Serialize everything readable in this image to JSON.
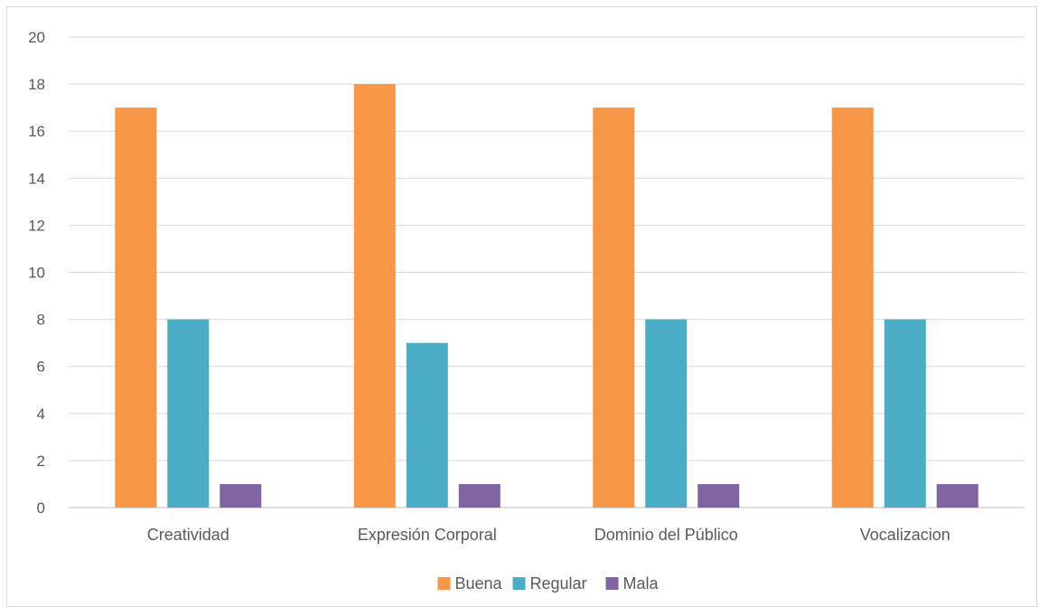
{
  "chart_data": {
    "type": "bar",
    "categories": [
      "Creatividad",
      "Expresión Corporal",
      "Dominio del Público",
      "Vocalizacion"
    ],
    "series": [
      {
        "name": "Buena",
        "values": [
          17,
          18,
          17,
          17
        ],
        "color": "#F79646"
      },
      {
        "name": "Regular",
        "values": [
          8,
          7,
          8,
          8
        ],
        "color": "#4BACC6"
      },
      {
        "name": "Mala",
        "values": [
          1,
          1,
          1,
          1
        ],
        "color": "#8064A2"
      }
    ],
    "title": "",
    "xlabel": "",
    "ylabel": "",
    "ylim": [
      0,
      20
    ],
    "ytick_step": 2,
    "grid": true,
    "legend_position": "bottom"
  }
}
